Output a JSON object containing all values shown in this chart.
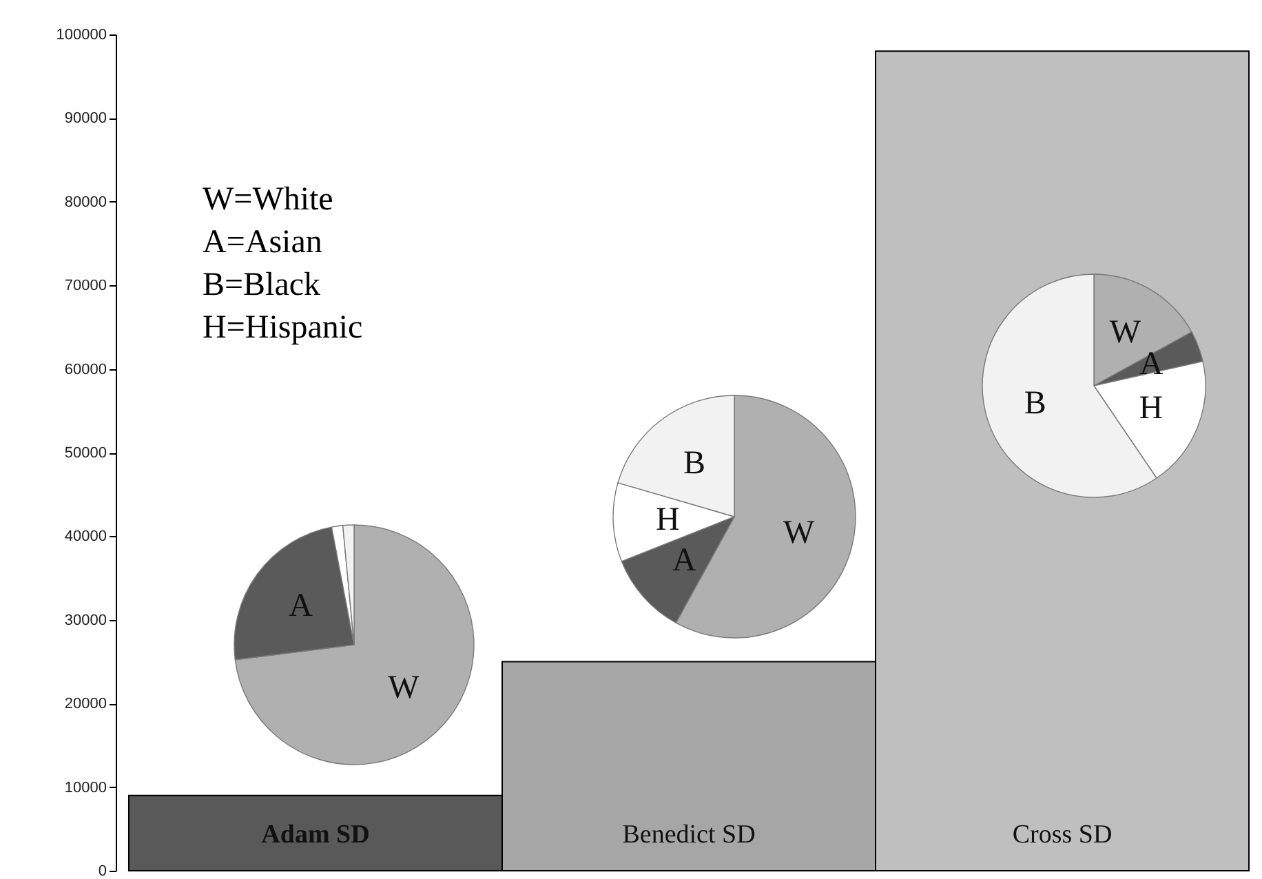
{
  "chart_data": [
    {
      "type": "bar",
      "categories": [
        "Adam SD",
        "Benedict SD",
        "Cross SD"
      ],
      "values": [
        9000,
        25000,
        98000
      ],
      "colors": [
        "#595959",
        "#a6a6a6",
        "#bfbfbf"
      ],
      "ylim": [
        0,
        100000
      ],
      "yticks": [
        0,
        10000,
        20000,
        30000,
        40000,
        50000,
        60000,
        70000,
        80000,
        90000,
        100000
      ],
      "grid": false,
      "annotations": [
        "W=White",
        "A=Asian",
        "B=Black",
        "H=Hispanic"
      ]
    },
    {
      "type": "pie",
      "categories": [
        "W",
        "A",
        null,
        null
      ],
      "values": [
        73,
        24,
        1.5,
        1.5
      ],
      "colors": [
        "#b0b0b0",
        "#5a5a5a",
        "#ffffff",
        "#f2f2f2"
      ]
    },
    {
      "type": "pie",
      "categories": [
        "W",
        "A",
        "H",
        "B"
      ],
      "values": [
        58,
        11,
        10.5,
        20.5
      ],
      "colors": [
        "#b0b0b0",
        "#5a5a5a",
        "#ffffff",
        "#f2f2f2"
      ]
    },
    {
      "type": "pie",
      "categories": [
        "W",
        "A",
        "H",
        "B"
      ],
      "values": [
        17,
        4.5,
        19,
        59.5
      ],
      "colors": [
        "#b0b0b0",
        "#5a5a5a",
        "#ffffff",
        "#f2f2f2"
      ]
    }
  ]
}
